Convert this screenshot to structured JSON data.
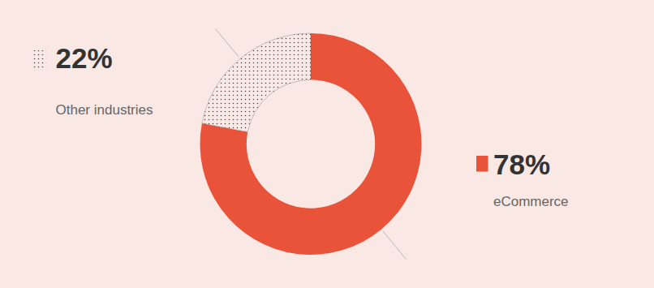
{
  "chart_data": {
    "type": "pie",
    "categories": [
      "eCommerce",
      "Other industries"
    ],
    "values": [
      78,
      22
    ],
    "value_labels": [
      "78%",
      "22%"
    ],
    "data_labels": true,
    "colors": [
      "#E8533A",
      "#FAE8E5"
    ]
  }
}
